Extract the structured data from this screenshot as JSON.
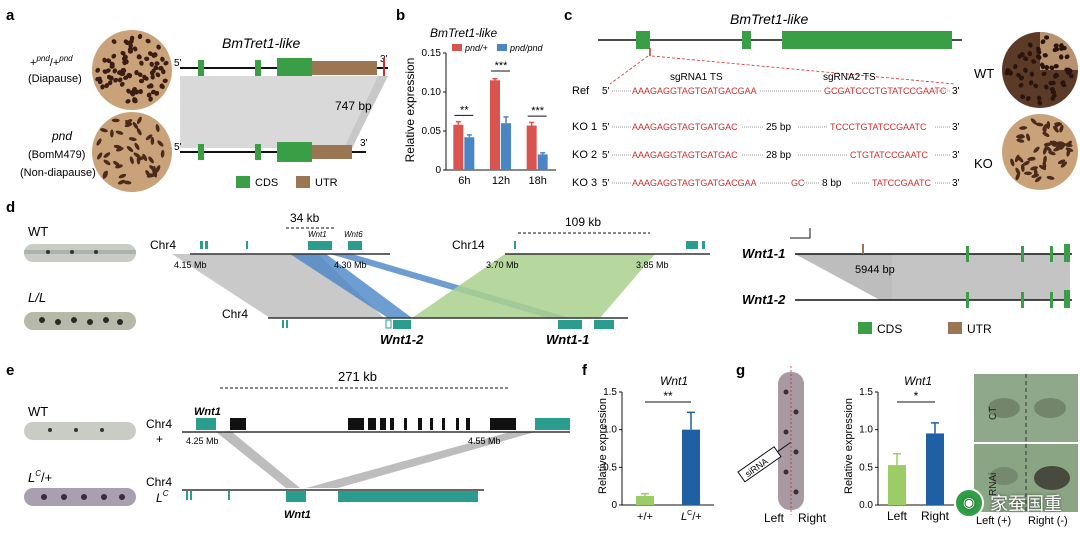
{
  "panel_a": {
    "letter": "a",
    "gene_title": "BmTret1-like",
    "wt_genotype_base": "+",
    "wt_genotype_sup": "pnd",
    "wt_genotype_sep": "/+",
    "wt_genotype_sup2": "pnd",
    "wt_phenotype": "(Diapause)",
    "mut_name": "pnd",
    "mut_strain": "(BomM479)",
    "mut_phenotype": "(Non-diapause)",
    "five_prime": "5'",
    "three_prime": "3'",
    "deletion_label": "747 bp",
    "legend_cds": "CDS",
    "legend_utr": "UTR"
  },
  "panel_b": {
    "letter": "b",
    "title": "BmTret1-like",
    "ylabel": "Relative expression",
    "legend": [
      "pnd/+",
      "pnd/pnd"
    ],
    "significance": [
      "**",
      "***",
      "***"
    ]
  },
  "panel_c": {
    "letter": "c",
    "gene_title": "BmTret1-like",
    "sg1": "sgRNA1 TS",
    "sg2": "sgRNA2 TS",
    "wt_label": "WT",
    "ko_label": "KO",
    "rows": [
      {
        "name": "Ref",
        "five": "5'",
        "seq1": "AAAGAGGTAGTGATGACGAA",
        "mid": "",
        "seq2": "GCGATCCCTGTATCCGAATC",
        "three": "3'"
      },
      {
        "name": "KO 1",
        "five": "5'",
        "seq1": "AAAGAGGTAGTGATGAC",
        "mid": "25 bp",
        "seq2": "TCCCTGTATCCGAATC",
        "three": "3'"
      },
      {
        "name": "KO 2",
        "five": "5'",
        "seq1": "AAAGAGGTAGTGATGAC",
        "mid": "28 bp",
        "seq2": "CTGTATCCGAATC",
        "three": "3'"
      },
      {
        "name": "KO 3",
        "five": "5'",
        "seq1": "AAAGAGGTAGTGATGACGAA",
        "mid": "GC",
        "mid2": "8 bp",
        "seq2": "TATCCGAATC",
        "three": "3'"
      }
    ]
  },
  "panel_d": {
    "letter": "d",
    "wt_label": "WT",
    "ll_label": "L/L",
    "chr4": "Chr4",
    "chr14": "Chr14",
    "chr4b": "Chr4",
    "kb34": "34 kb",
    "kb109": "109 kb",
    "wnt1": "Wnt1",
    "wnt6": "Wnt6",
    "ticks": [
      "4.15 Mb",
      "4.30 Mb",
      "3.70 Mb",
      "3.85 Mb"
    ],
    "wnt12": "Wnt1-2",
    "wnt11": "Wnt1-1",
    "right_wnt11": "Wnt1-1",
    "right_wnt12": "Wnt1-2",
    "bp5944": "5944 bp",
    "legend_cds": "CDS",
    "legend_utr": "UTR"
  },
  "panel_e": {
    "letter": "e",
    "wt_label": "WT",
    "lc_label": "L",
    "lc_sup": "C",
    "lc_suffix": "/+",
    "kb271": "271 kb",
    "wnt1_top": "Wnt1",
    "chr4_top": "Chr4",
    "plus": "+",
    "tick1": "4.25 Mb",
    "tick2": "4.55 Mb",
    "chr4_bottom": "Chr4",
    "lc_line": "L",
    "lc_line_sup": "C",
    "wnt1_bottom": "Wnt1"
  },
  "panel_f": {
    "letter": "f",
    "title": "Wnt1",
    "ylabel": "Relative expression",
    "significance": "**"
  },
  "panel_g": {
    "letter": "g",
    "sirna": "siRNA",
    "left": "Left",
    "right": "Right",
    "title": "Wnt1",
    "ylabel": "Relative expression",
    "significance": "*",
    "ct": "CT",
    "rnai": "RNAi",
    "left_plus": "Left (+)",
    "right_minus": "Right (-)"
  },
  "watermark": "家蚕国重",
  "colors": {
    "red": "#d9534f",
    "blue": "#4a86c5",
    "green": "#3a9e46",
    "brown": "#9b7653",
    "teal": "#2a9d8f",
    "gray": "#bdbdbd",
    "seq_red": "#d62b2b",
    "lightgreen": "#9ccc65",
    "darkblue": "#1f5fa3"
  },
  "chart_data": [
    {
      "type": "bar",
      "title": "BmTret1-like",
      "ylabel": "Relative expression",
      "categories": [
        "6h",
        "12h",
        "18h"
      ],
      "series": [
        {
          "name": "pnd/+",
          "values": [
            0.058,
            0.115,
            0.057
          ]
        },
        {
          "name": "pnd/pnd",
          "values": [
            0.042,
            0.06,
            0.02
          ]
        }
      ],
      "ylim": [
        0,
        0.15
      ],
      "yticks": [
        "0",
        "0.05",
        "0.10",
        "0.15"
      ]
    },
    {
      "type": "bar",
      "title": "Wnt1",
      "ylabel": "Relative expression",
      "categories": [
        "+/+",
        "L^C/+"
      ],
      "values": [
        0.12,
        1.0
      ],
      "ylim": [
        0,
        1.5
      ],
      "yticks": [
        "0",
        "0.5",
        "1.0",
        "1.5"
      ]
    },
    {
      "type": "bar",
      "title": "Wnt1",
      "ylabel": "Relative expression",
      "categories": [
        "Left",
        "Right"
      ],
      "values": [
        0.53,
        0.95
      ],
      "ylim": [
        0,
        1.5
      ],
      "yticks": [
        "0.0",
        "0.5",
        "1.0",
        "1.5"
      ]
    }
  ]
}
